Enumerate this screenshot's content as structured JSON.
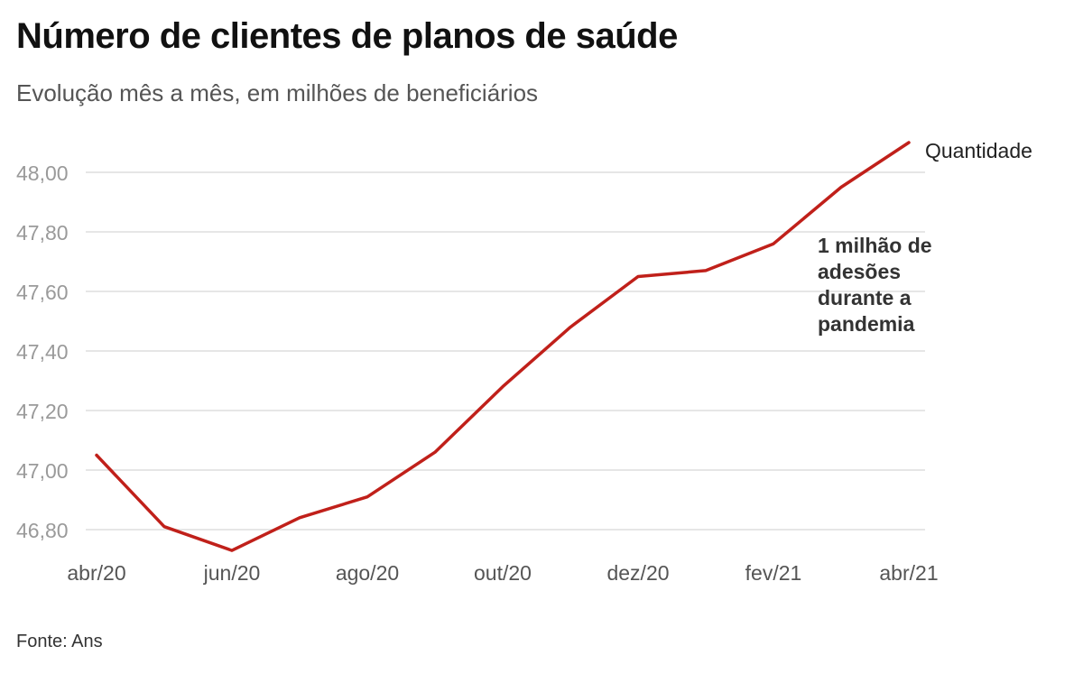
{
  "header": {
    "title": "Número de clientes de planos de saúde",
    "subtitle": "Evolução mês a mês, em milhões de beneficiários"
  },
  "footer": {
    "source": "Fonte: Ans"
  },
  "chart_data": {
    "type": "line",
    "title": "Número de clientes de planos de saúde",
    "subtitle": "Evolução mês a mês, em milhões de beneficiários",
    "xlabel": "",
    "ylabel": "",
    "x": [
      "abr/20",
      "mai/20",
      "jun/20",
      "jul/20",
      "ago/20",
      "set/20",
      "out/20",
      "nov/20",
      "dez/20",
      "jan/21",
      "fev/21",
      "mar/21",
      "abr/21"
    ],
    "x_tick_labels": [
      "abr/20",
      "jun/20",
      "ago/20",
      "out/20",
      "dez/20",
      "fev/21",
      "abr/21"
    ],
    "y_tick_labels": [
      "46,80",
      "47,00",
      "47,20",
      "47,40",
      "47,60",
      "47,80",
      "48,00"
    ],
    "y_ticks": [
      46.8,
      47.0,
      47.2,
      47.4,
      47.6,
      47.8,
      48.0
    ],
    "ylim": [
      46.7,
      48.1
    ],
    "grid": true,
    "series": [
      {
        "name": "Quantidade",
        "color": "#c0201a",
        "values": [
          47.05,
          46.81,
          46.73,
          46.84,
          46.91,
          47.06,
          47.28,
          47.48,
          47.65,
          47.67,
          47.76,
          47.95,
          48.1
        ]
      }
    ],
    "annotations": [
      {
        "lines": [
          "1 milhão de",
          "adesões",
          "durante a",
          "pandemia"
        ]
      }
    ]
  }
}
